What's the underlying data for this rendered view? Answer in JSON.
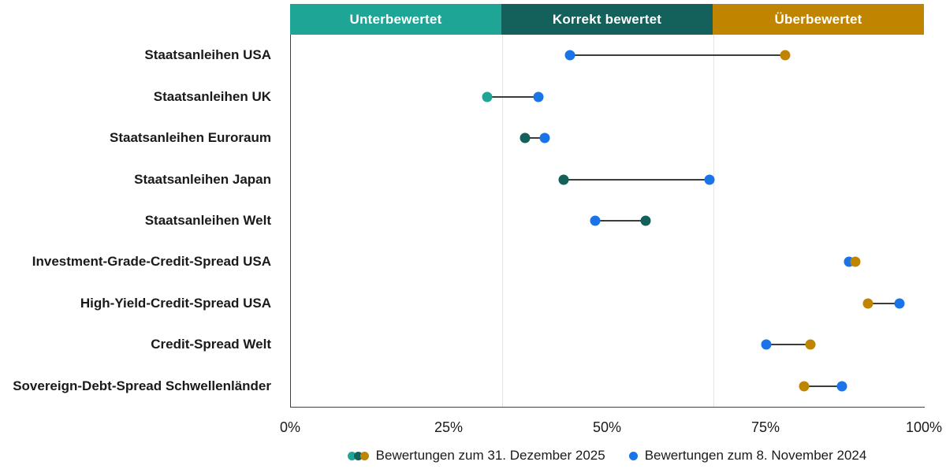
{
  "chart_data": {
    "type": "dumbbell",
    "orientation": "horizontal",
    "bands": [
      {
        "label": "Unterbewertet",
        "color": "#1fa596",
        "range": [
          0,
          33.33
        ]
      },
      {
        "label": "Korrekt bewertet",
        "color": "#14605b",
        "range": [
          33.33,
          66.67
        ]
      },
      {
        "label": "Überbewertet",
        "color": "#bf8400",
        "range": [
          66.67,
          100
        ]
      }
    ],
    "x_axis": {
      "min": 0,
      "max": 100,
      "values": [
        0,
        25,
        50,
        75,
        100
      ],
      "ticks": [
        "0%",
        "25%",
        "50%",
        "75%",
        "100%"
      ]
    },
    "series": [
      {
        "name": "Bewertungen zum 31. Dezember 2025",
        "marker": "band-colored"
      },
      {
        "name": "Bewertungen zum 8. November 2024",
        "color": "#1a73e8"
      }
    ],
    "rows": [
      {
        "label": "Staatsanleihen USA",
        "dez2025": 78,
        "nov2024": 44,
        "zone": 2
      },
      {
        "label": "Staatsanleihen UK",
        "dez2025": 31,
        "nov2024": 39,
        "zone": 0
      },
      {
        "label": "Staatsanleihen Euroraum",
        "dez2025": 37,
        "nov2024": 40,
        "zone": 1
      },
      {
        "label": "Staatsanleihen Japan",
        "dez2025": 43,
        "nov2024": 66,
        "zone": 1
      },
      {
        "label": "Staatsanleihen Welt",
        "dez2025": 56,
        "nov2024": 48,
        "zone": 1
      },
      {
        "label": "Investment-Grade-Credit-Spread USA",
        "dez2025": 89,
        "nov2024": 88,
        "zone": 2
      },
      {
        "label": "High-Yield-Credit-Spread USA",
        "dez2025": 91,
        "nov2024": 96,
        "zone": 2
      },
      {
        "label": "Credit-Spread Welt",
        "dez2025": 82,
        "nov2024": 75,
        "zone": 2
      },
      {
        "label": "Sovereign-Debt-Spread Schwellenländer",
        "dez2025": 81,
        "nov2024": 87,
        "zone": 2
      }
    ],
    "colors": {
      "connector": "#3c3c3b",
      "axis": "#404040",
      "gridline": "#e4e4e4",
      "text": "#1a1a1a"
    },
    "legend_position": "bottom-center",
    "grid": "band-boundaries-only"
  }
}
